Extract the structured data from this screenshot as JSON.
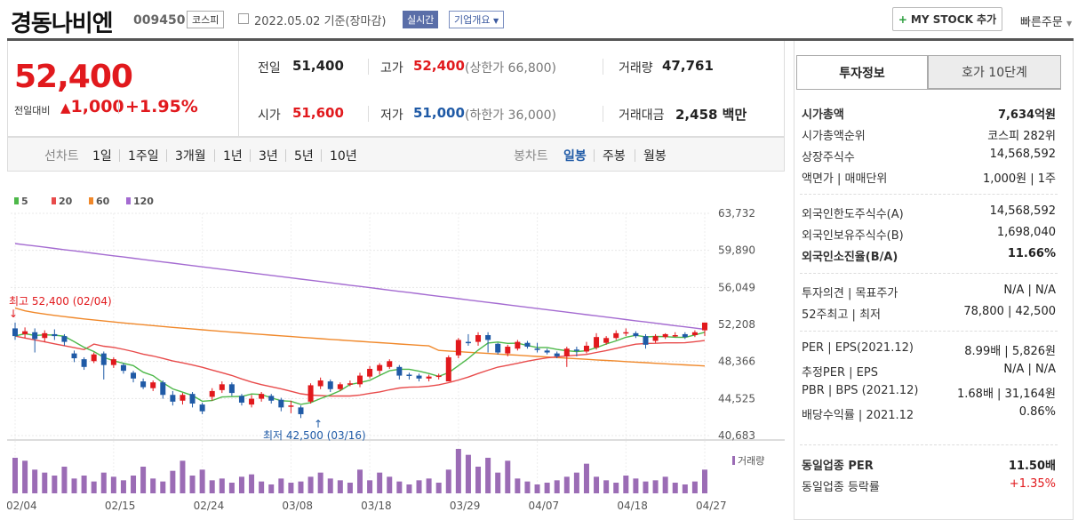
{
  "header": {
    "stock_name": "경동나비엔",
    "stock_code": "009450",
    "market": "코스피",
    "date_text": "2022.05.02 기준(장마감)",
    "realtime_label": "실시간",
    "corp_label": "기업개요",
    "mystock_label": "MY STOCK 추가",
    "quick_order": "빠른주문"
  },
  "price": {
    "current": "52,400",
    "change_label": "전일대비",
    "change": "1,000",
    "change_pct": "+1.95%",
    "up_color": "#e1191d",
    "down_color": "#1f5aa6"
  },
  "quotes": {
    "prev_label": "전일",
    "prev": "51,400",
    "high_label": "고가",
    "high": "52,400",
    "upper_limit": "(상한가 66,800)",
    "volume_label": "거래량",
    "volume": "47,761",
    "open_label": "시가",
    "open": "51,600",
    "low_label": "저가",
    "low": "51,000",
    "lower_limit": "(하한가 36,000)",
    "amount_label": "거래대금",
    "amount": "2,458 백만"
  },
  "periods": {
    "line_label": "선차트",
    "line_items": [
      "1일",
      "1주일",
      "3개월",
      "1년",
      "3년",
      "5년",
      "10년"
    ],
    "candle_label": "봉차트",
    "candle_items": [
      "일봉",
      "주봉",
      "월봉"
    ],
    "active": "일봉"
  },
  "right_panel": {
    "tab_active": "투자정보",
    "tab_other": "호가 10단계",
    "sec1": [
      {
        "label": "시가총액",
        "value": "7,634억원",
        "bold": true
      },
      {
        "label": "시가총액순위",
        "value": "코스피 282위"
      },
      {
        "label": "상장주식수",
        "value": "14,568,592"
      },
      {
        "label": "액면가 | 매매단위",
        "value": "1,000원 | 1주"
      }
    ],
    "sec2": [
      {
        "label": "외국인한도주식수(A)",
        "value": "14,568,592"
      },
      {
        "label": "외국인보유주식수(B)",
        "value": "1,698,040"
      },
      {
        "label": "외국인소진율(B/A)",
        "value": "11.66%",
        "bold": true
      }
    ],
    "sec3": [
      {
        "label": "투자의견 | 목표주가",
        "value": "N/A | N/A"
      },
      {
        "label": "52주최고 | 최저",
        "value": "78,800 | 42,500"
      }
    ],
    "sec4": [
      {
        "label": "PER | EPS(2021.12)",
        "value": "8.99배 | 5,826원"
      },
      {
        "label": "추정PER | EPS",
        "value": "N/A | N/A"
      },
      {
        "label": "PBR | BPS (2021.12)",
        "value": "1.68배 | 31,164원"
      },
      {
        "label": "배당수익률 | 2021.12",
        "value": "0.86%"
      }
    ],
    "sec5": [
      {
        "label": "동일업종 PER",
        "value": "11.50배",
        "bold": true
      },
      {
        "label": "동일업종 등락률",
        "value": "+1.35%",
        "red": true
      }
    ]
  },
  "chart_data": {
    "type": "candlestick",
    "ma_legend": [
      {
        "name": "5",
        "color": "#4db849"
      },
      {
        "name": "20",
        "color": "#e84b4b"
      },
      {
        "name": "60",
        "color": "#f0882a"
      },
      {
        "name": "120",
        "color": "#a46bd1"
      }
    ],
    "y_ticks": [
      "63,732",
      "59,890",
      "56,049",
      "52,208",
      "48,366",
      "44,525",
      "40,683"
    ],
    "ylim": [
      40683,
      63732
    ],
    "x_ticks": [
      "02/04",
      "02/15",
      "02/24",
      "03/08",
      "03/18",
      "03/29",
      "04/07",
      "04/18",
      "04/27"
    ],
    "volume_label": "거래량",
    "high_annotation": "최고 52,400 (02/04)",
    "low_annotation": "최저 42,500 (03/16)",
    "candles": [
      {
        "o": 51800,
        "c": 51000,
        "h": 52400,
        "l": 50600
      },
      {
        "o": 51200,
        "c": 51500,
        "h": 51900,
        "l": 50800
      },
      {
        "o": 51400,
        "c": 50700,
        "h": 51800,
        "l": 49300
      },
      {
        "o": 50800,
        "c": 51300,
        "h": 51600,
        "l": 50400
      },
      {
        "o": 51200,
        "c": 51000,
        "h": 51700,
        "l": 50600
      },
      {
        "o": 51000,
        "c": 50400,
        "h": 51200,
        "l": 50000
      },
      {
        "o": 49200,
        "c": 48700,
        "h": 49500,
        "l": 48300
      },
      {
        "o": 48600,
        "c": 47800,
        "h": 48800,
        "l": 47500
      },
      {
        "o": 48400,
        "c": 49100,
        "h": 49300,
        "l": 48200
      },
      {
        "o": 49200,
        "c": 48000,
        "h": 49400,
        "l": 46500
      },
      {
        "o": 48000,
        "c": 48600,
        "h": 48800,
        "l": 47700
      },
      {
        "o": 48000,
        "c": 47400,
        "h": 48200,
        "l": 47100
      },
      {
        "o": 47200,
        "c": 46600,
        "h": 47400,
        "l": 46200
      },
      {
        "o": 46300,
        "c": 45700,
        "h": 46600,
        "l": 45500
      },
      {
        "o": 45600,
        "c": 46200,
        "h": 46400,
        "l": 45300
      },
      {
        "o": 46200,
        "c": 44900,
        "h": 46400,
        "l": 44500
      },
      {
        "o": 44900,
        "c": 44200,
        "h": 45300,
        "l": 43800
      },
      {
        "o": 44300,
        "c": 44900,
        "h": 45100,
        "l": 43900
      },
      {
        "o": 45000,
        "c": 44000,
        "h": 45200,
        "l": 43600
      },
      {
        "o": 43900,
        "c": 43200,
        "h": 44100,
        "l": 42900
      },
      {
        "o": 44700,
        "c": 45300,
        "h": 45600,
        "l": 44300
      },
      {
        "o": 45400,
        "c": 46000,
        "h": 46300,
        "l": 45100
      },
      {
        "o": 46000,
        "c": 45100,
        "h": 46200,
        "l": 44800
      },
      {
        "o": 44800,
        "c": 44100,
        "h": 45000,
        "l": 43800
      },
      {
        "o": 43900,
        "c": 44500,
        "h": 44900,
        "l": 43600
      },
      {
        "o": 44500,
        "c": 45000,
        "h": 45200,
        "l": 44200
      },
      {
        "o": 44800,
        "c": 44300,
        "h": 45000,
        "l": 44000
      },
      {
        "o": 44400,
        "c": 43600,
        "h": 44600,
        "l": 43200
      },
      {
        "o": 43700,
        "c": 43800,
        "h": 44300,
        "l": 43000
      },
      {
        "o": 43600,
        "c": 42900,
        "h": 43800,
        "l": 42500
      },
      {
        "o": 44200,
        "c": 45900,
        "h": 46100,
        "l": 44000
      },
      {
        "o": 45800,
        "c": 46400,
        "h": 46700,
        "l": 45500
      },
      {
        "o": 46300,
        "c": 45500,
        "h": 46500,
        "l": 45200
      },
      {
        "o": 45500,
        "c": 46000,
        "h": 46200,
        "l": 45300
      },
      {
        "o": 46000,
        "c": 46100,
        "h": 46400,
        "l": 45800
      },
      {
        "o": 46000,
        "c": 46900,
        "h": 47200,
        "l": 45700
      },
      {
        "o": 46800,
        "c": 47600,
        "h": 47900,
        "l": 46600
      },
      {
        "o": 47400,
        "c": 48000,
        "h": 48200,
        "l": 47000
      },
      {
        "o": 47800,
        "c": 48400,
        "h": 48600,
        "l": 47600
      },
      {
        "o": 47800,
        "c": 46900,
        "h": 48000,
        "l": 46500
      },
      {
        "o": 47000,
        "c": 46900,
        "h": 47200,
        "l": 46500
      },
      {
        "o": 46900,
        "c": 46600,
        "h": 47100,
        "l": 46300
      },
      {
        "o": 46600,
        "c": 46800,
        "h": 47000,
        "l": 46300
      },
      {
        "o": 46800,
        "c": 46900,
        "h": 47100,
        "l": 46500
      },
      {
        "o": 46300,
        "c": 48800,
        "h": 49000,
        "l": 46300
      },
      {
        "o": 49000,
        "c": 50600,
        "h": 50800,
        "l": 48700
      },
      {
        "o": 50400,
        "c": 50300,
        "h": 51200,
        "l": 50000
      },
      {
        "o": 50400,
        "c": 51100,
        "h": 51400,
        "l": 50000
      },
      {
        "o": 51100,
        "c": 50600,
        "h": 51400,
        "l": 49300
      },
      {
        "o": 50200,
        "c": 49300,
        "h": 50300,
        "l": 49100
      },
      {
        "o": 49200,
        "c": 49900,
        "h": 50100,
        "l": 48900
      },
      {
        "o": 49700,
        "c": 50400,
        "h": 50600,
        "l": 49500
      },
      {
        "o": 50300,
        "c": 49900,
        "h": 50500,
        "l": 49700
      },
      {
        "o": 49700,
        "c": 49600,
        "h": 50300,
        "l": 49300
      },
      {
        "o": 49500,
        "c": 49300,
        "h": 49700,
        "l": 49100
      },
      {
        "o": 49200,
        "c": 48900,
        "h": 49400,
        "l": 48700
      },
      {
        "o": 48900,
        "c": 49700,
        "h": 49900,
        "l": 47800
      },
      {
        "o": 49600,
        "c": 49500,
        "h": 49900,
        "l": 48900
      },
      {
        "o": 49400,
        "c": 50000,
        "h": 50400,
        "l": 49200
      },
      {
        "o": 49800,
        "c": 50900,
        "h": 51300,
        "l": 49600
      },
      {
        "o": 50300,
        "c": 50800,
        "h": 51000,
        "l": 50100
      },
      {
        "o": 50800,
        "c": 51300,
        "h": 51600,
        "l": 50600
      },
      {
        "o": 51300,
        "c": 51400,
        "h": 51800,
        "l": 51000
      },
      {
        "o": 51300,
        "c": 51000,
        "h": 51500,
        "l": 50800
      },
      {
        "o": 51000,
        "c": 50100,
        "h": 51200,
        "l": 49700
      },
      {
        "o": 50500,
        "c": 51000,
        "h": 51200,
        "l": 50300
      },
      {
        "o": 50900,
        "c": 51200,
        "h": 51300,
        "l": 50700
      },
      {
        "o": 51100,
        "c": 51100,
        "h": 51400,
        "l": 50900
      },
      {
        "o": 51200,
        "c": 50900,
        "h": 51400,
        "l": 50700
      },
      {
        "o": 51100,
        "c": 51400,
        "h": 51600,
        "l": 50900
      },
      {
        "o": 51600,
        "c": 52400,
        "h": 52400,
        "l": 51000
      }
    ],
    "volumes": [
      60,
      55,
      40,
      35,
      30,
      45,
      25,
      30,
      20,
      35,
      28,
      22,
      30,
      45,
      25,
      20,
      38,
      55,
      30,
      40,
      22,
      25,
      18,
      28,
      32,
      20,
      15,
      25,
      18,
      20,
      28,
      35,
      25,
      22,
      18,
      40,
      22,
      35,
      28,
      20,
      15,
      22,
      25,
      18,
      40,
      75,
      65,
      45,
      60,
      35,
      55,
      25,
      20,
      15,
      18,
      22,
      28,
      35,
      50,
      28,
      22,
      18,
      30,
      25,
      20,
      22,
      28,
      18,
      15,
      20,
      40
    ]
  }
}
